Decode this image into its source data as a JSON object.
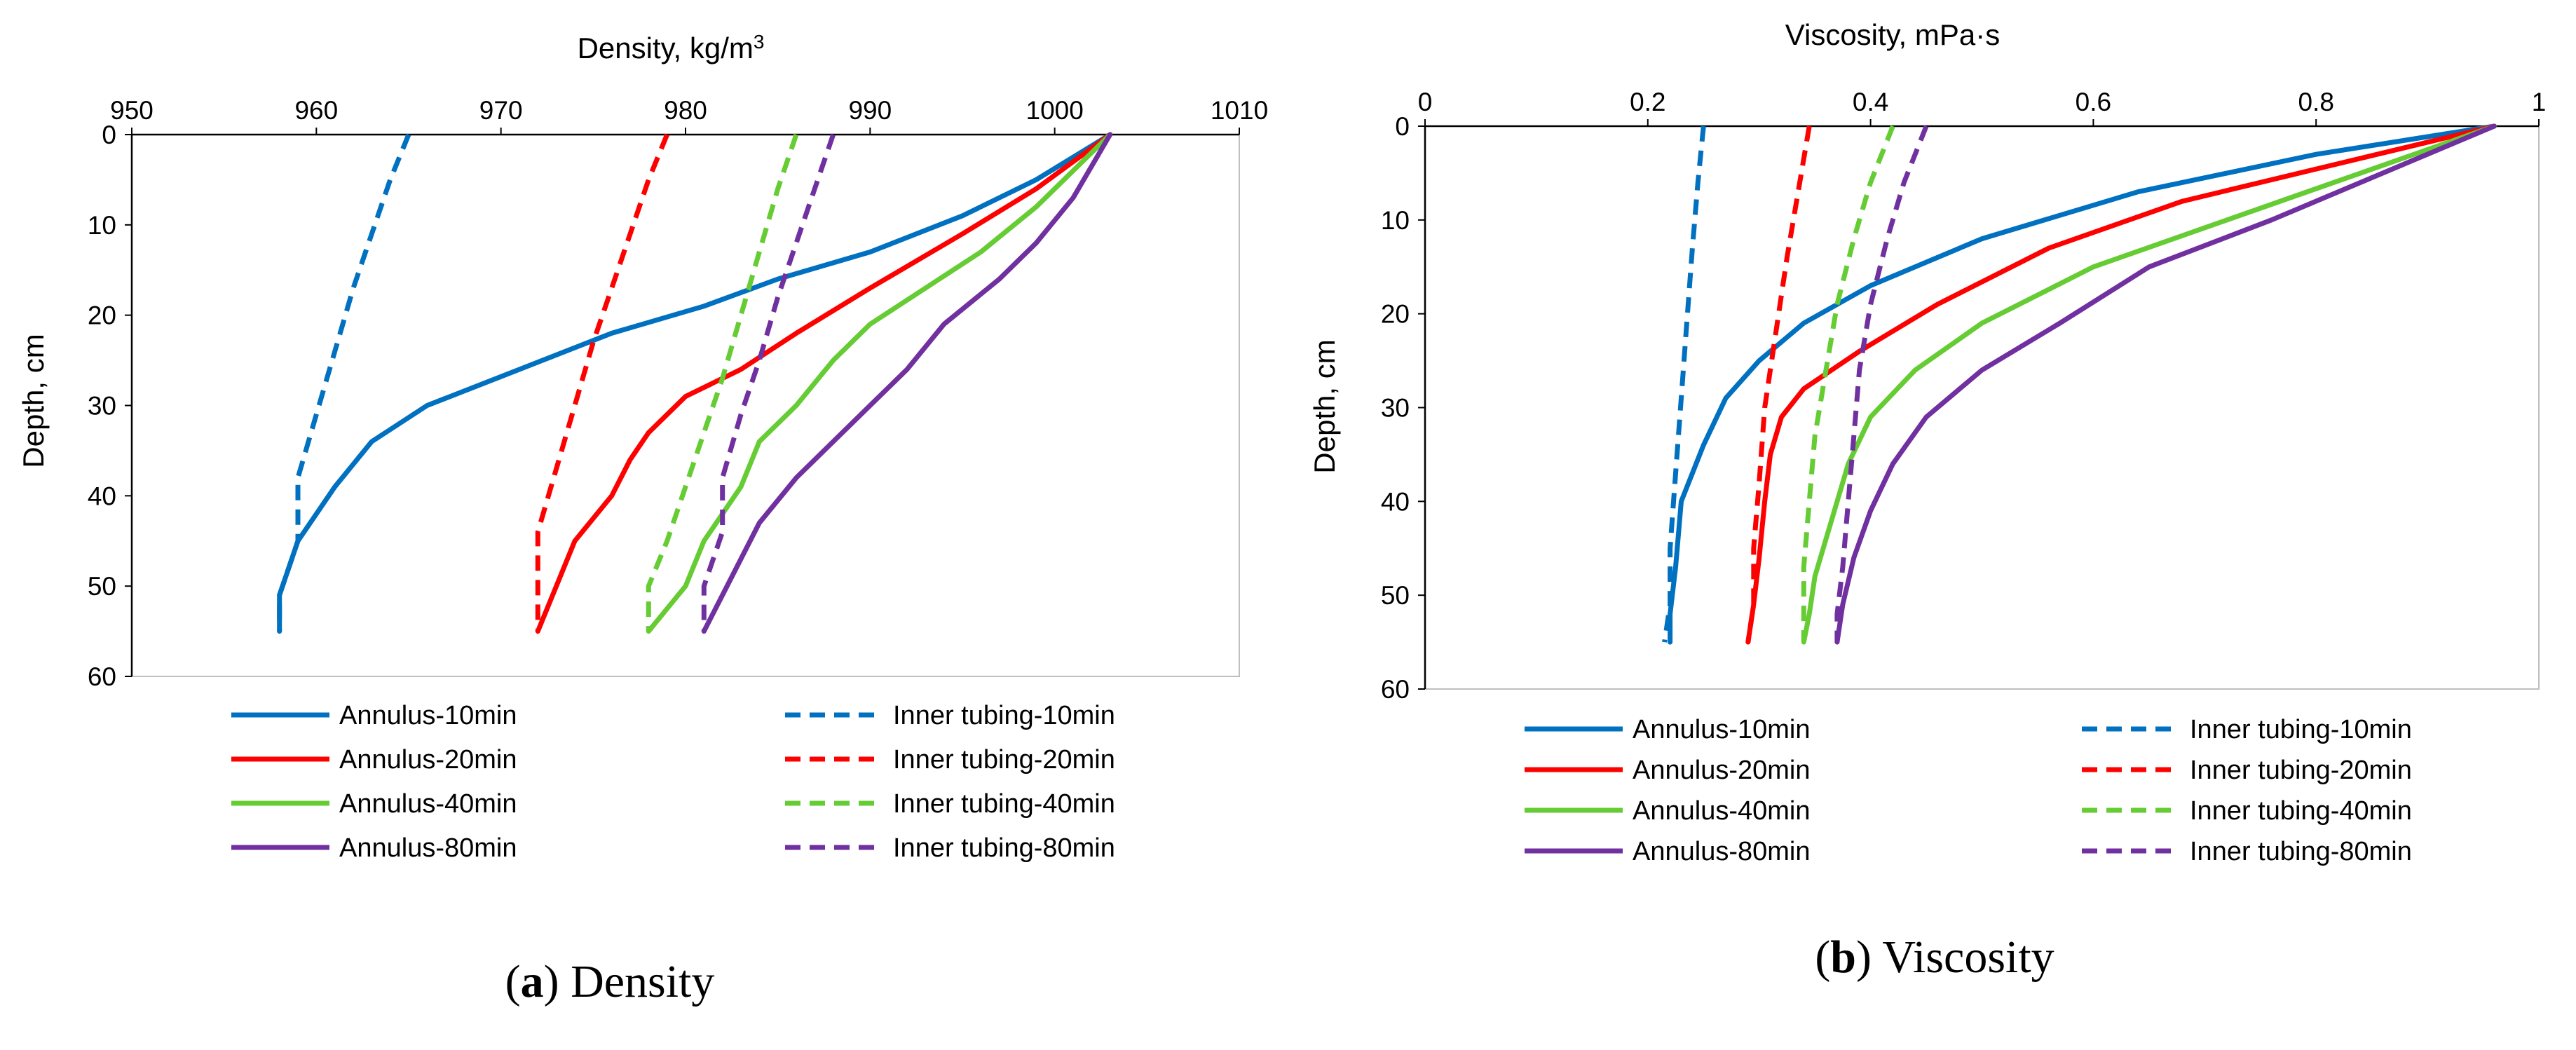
{
  "chart_data": [
    {
      "type": "line",
      "id": "density",
      "caption_letter": "a",
      "caption_text": "Density",
      "xlabel": "Density,  kg/m",
      "xlabel_superscript": "3",
      "ylabel": "Depth, cm",
      "x_axis_position": "top",
      "y_axis_reversed": true,
      "xlim": [
        950,
        1010
      ],
      "ylim": [
        0,
        60
      ],
      "xticks": [
        950,
        960,
        970,
        980,
        990,
        1000,
        1010
      ],
      "yticks": [
        0,
        10,
        20,
        30,
        40,
        50,
        60
      ],
      "grid": false,
      "legend_position": "bottom",
      "series": [
        {
          "name": "Annulus-10min",
          "color": "#0070C0",
          "dash": "solid",
          "points": [
            [
              1003,
              0
            ],
            [
              999,
              5
            ],
            [
              995,
              9
            ],
            [
              990,
              13
            ],
            [
              985,
              16
            ],
            [
              981,
              19
            ],
            [
              976,
              22
            ],
            [
              971,
              26
            ],
            [
              966,
              30
            ],
            [
              963,
              34
            ],
            [
              961,
              39
            ],
            [
              959,
              45
            ],
            [
              958,
              51
            ],
            [
              958,
              55
            ]
          ]
        },
        {
          "name": "Annulus-20min",
          "color": "#FF0000",
          "dash": "solid",
          "points": [
            [
              1003,
              0
            ],
            [
              999,
              6
            ],
            [
              995,
              11
            ],
            [
              990,
              17
            ],
            [
              986,
              22
            ],
            [
              983,
              26
            ],
            [
              980,
              29
            ],
            [
              978,
              33
            ],
            [
              977,
              36
            ],
            [
              976,
              40
            ],
            [
              974,
              45
            ],
            [
              973,
              50
            ],
            [
              972,
              55
            ]
          ]
        },
        {
          "name": "Annulus-40min",
          "color": "#66CC33",
          "dash": "solid",
          "points": [
            [
              1003,
              0
            ],
            [
              999,
              8
            ],
            [
              996,
              13
            ],
            [
              993,
              17
            ],
            [
              990,
              21
            ],
            [
              988,
              25
            ],
            [
              986,
              30
            ],
            [
              984,
              34
            ],
            [
              983,
              39
            ],
            [
              981,
              45
            ],
            [
              980,
              50
            ],
            [
              978,
              55
            ]
          ]
        },
        {
          "name": "Annulus-80min",
          "color": "#7030A0",
          "dash": "solid",
          "points": [
            [
              1003,
              0
            ],
            [
              1001,
              7
            ],
            [
              999,
              12
            ],
            [
              997,
              16
            ],
            [
              994,
              21
            ],
            [
              992,
              26
            ],
            [
              990,
              30
            ],
            [
              988,
              34
            ],
            [
              986,
              38
            ],
            [
              984,
              43
            ],
            [
              983,
              47
            ],
            [
              982,
              51
            ],
            [
              981,
              55
            ]
          ]
        },
        {
          "name": "Inner tubing-10min",
          "color": "#0070C0",
          "dash": "dashed",
          "points": [
            [
              965,
              0
            ],
            [
              964,
              5
            ],
            [
              963,
              11
            ],
            [
              962,
              17
            ],
            [
              961,
              24
            ],
            [
              960,
              31
            ],
            [
              959,
              38
            ],
            [
              959,
              45
            ],
            [
              958,
              51
            ],
            [
              958,
              55
            ]
          ]
        },
        {
          "name": "Inner tubing-20min",
          "color": "#FF0000",
          "dash": "dashed",
          "points": [
            [
              979,
              0
            ],
            [
              978,
              5
            ],
            [
              977,
              11
            ],
            [
              976,
              17
            ],
            [
              975,
              23
            ],
            [
              974,
              30
            ],
            [
              973,
              37
            ],
            [
              972,
              44
            ],
            [
              972,
              50
            ],
            [
              972,
              55
            ]
          ]
        },
        {
          "name": "Inner tubing-40min",
          "color": "#66CC33",
          "dash": "dashed",
          "points": [
            [
              986,
              0
            ],
            [
              985,
              6
            ],
            [
              984,
              13
            ],
            [
              983,
              20
            ],
            [
              982,
              27
            ],
            [
              981,
              33
            ],
            [
              980,
              39
            ],
            [
              979,
              45
            ],
            [
              978,
              50
            ],
            [
              978,
              55
            ]
          ]
        },
        {
          "name": "Inner tubing-80min",
          "color": "#7030A0",
          "dash": "dashed",
          "points": [
            [
              988,
              0
            ],
            [
              987,
              6
            ],
            [
              986,
              12
            ],
            [
              985,
              18
            ],
            [
              984,
              25
            ],
            [
              983,
              31
            ],
            [
              982,
              38
            ],
            [
              982,
              44
            ],
            [
              981,
              50
            ],
            [
              981,
              55
            ]
          ]
        }
      ]
    },
    {
      "type": "line",
      "id": "viscosity",
      "caption_letter": "b",
      "caption_text": "Viscosity",
      "xlabel": "Viscosity, mPa·s",
      "xlabel_superscript": "",
      "ylabel": "Depth, cm",
      "x_axis_position": "top",
      "y_axis_reversed": true,
      "xlim": [
        0,
        1
      ],
      "ylim": [
        0,
        60
      ],
      "xticks": [
        0,
        0.2,
        0.4,
        0.6,
        0.8,
        1
      ],
      "xtick_labels": [
        "0",
        "0.2",
        "0.4",
        "0.6",
        "0.8",
        "1"
      ],
      "yticks": [
        0,
        10,
        20,
        30,
        40,
        50,
        60
      ],
      "grid": false,
      "legend_position": "bottom",
      "series": [
        {
          "name": "Annulus-10min",
          "color": "#0070C0",
          "dash": "solid",
          "points": [
            [
              0.96,
              0
            ],
            [
              0.8,
              3
            ],
            [
              0.64,
              7
            ],
            [
              0.5,
              12
            ],
            [
              0.4,
              17
            ],
            [
              0.34,
              21
            ],
            [
              0.3,
              25
            ],
            [
              0.27,
              29
            ],
            [
              0.25,
              34
            ],
            [
              0.23,
              40
            ],
            [
              0.225,
              47
            ],
            [
              0.22,
              52
            ],
            [
              0.22,
              55
            ]
          ]
        },
        {
          "name": "Annulus-20min",
          "color": "#FF0000",
          "dash": "solid",
          "points": [
            [
              0.96,
              0
            ],
            [
              0.82,
              4
            ],
            [
              0.68,
              8
            ],
            [
              0.56,
              13
            ],
            [
              0.46,
              19
            ],
            [
              0.39,
              24
            ],
            [
              0.34,
              28
            ],
            [
              0.32,
              31
            ],
            [
              0.31,
              35
            ],
            [
              0.305,
              40
            ],
            [
              0.3,
              46
            ],
            [
              0.295,
              51
            ],
            [
              0.29,
              55
            ]
          ]
        },
        {
          "name": "Annulus-40min",
          "color": "#66CC33",
          "dash": "solid",
          "points": [
            [
              0.96,
              0
            ],
            [
              0.84,
              5
            ],
            [
              0.72,
              10
            ],
            [
              0.6,
              15
            ],
            [
              0.5,
              21
            ],
            [
              0.44,
              26
            ],
            [
              0.4,
              31
            ],
            [
              0.38,
              36
            ],
            [
              0.365,
              42
            ],
            [
              0.35,
              48
            ],
            [
              0.345,
              52
            ],
            [
              0.34,
              55
            ]
          ]
        },
        {
          "name": "Annulus-80min",
          "color": "#7030A0",
          "dash": "solid",
          "points": [
            [
              0.96,
              0
            ],
            [
              0.86,
              5
            ],
            [
              0.76,
              10
            ],
            [
              0.65,
              15
            ],
            [
              0.57,
              21
            ],
            [
              0.5,
              26
            ],
            [
              0.45,
              31
            ],
            [
              0.42,
              36
            ],
            [
              0.4,
              41
            ],
            [
              0.385,
              46
            ],
            [
              0.375,
              51
            ],
            [
              0.37,
              55
            ]
          ]
        },
        {
          "name": "Inner tubing-10min",
          "color": "#0070C0",
          "dash": "dashed",
          "points": [
            [
              0.25,
              0
            ],
            [
              0.245,
              6
            ],
            [
              0.24,
              13
            ],
            [
              0.235,
              21
            ],
            [
              0.23,
              29
            ],
            [
              0.225,
              37
            ],
            [
              0.22,
              45
            ],
            [
              0.22,
              51
            ],
            [
              0.215,
              55
            ]
          ]
        },
        {
          "name": "Inner tubing-20min",
          "color": "#FF0000",
          "dash": "dashed",
          "points": [
            [
              0.345,
              0
            ],
            [
              0.335,
              7
            ],
            [
              0.325,
              14
            ],
            [
              0.315,
              22
            ],
            [
              0.305,
              30
            ],
            [
              0.3,
              38
            ],
            [
              0.295,
              45
            ],
            [
              0.295,
              51
            ],
            [
              0.29,
              55
            ]
          ]
        },
        {
          "name": "Inner tubing-40min",
          "color": "#66CC33",
          "dash": "dashed",
          "points": [
            [
              0.42,
              0
            ],
            [
              0.4,
              6
            ],
            [
              0.385,
              12
            ],
            [
              0.37,
              19
            ],
            [
              0.36,
              26
            ],
            [
              0.35,
              33
            ],
            [
              0.345,
              40
            ],
            [
              0.34,
              47
            ],
            [
              0.34,
              52
            ],
            [
              0.34,
              55
            ]
          ]
        },
        {
          "name": "Inner tubing-80min",
          "color": "#7030A0",
          "dash": "dashed",
          "points": [
            [
              0.45,
              0
            ],
            [
              0.43,
              6
            ],
            [
              0.415,
              12
            ],
            [
              0.4,
              19
            ],
            [
              0.39,
              26
            ],
            [
              0.385,
              33
            ],
            [
              0.38,
              40
            ],
            [
              0.375,
              47
            ],
            [
              0.37,
              52
            ],
            [
              0.37,
              55
            ]
          ]
        }
      ]
    }
  ]
}
